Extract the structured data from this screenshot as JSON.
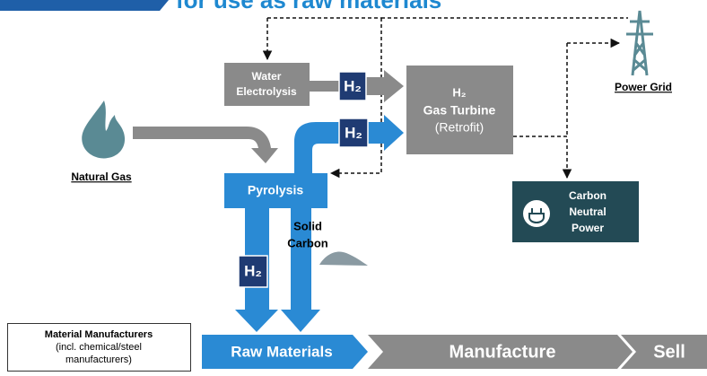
{
  "header": {
    "title": "for use as raw materials"
  },
  "nodes": {
    "water_electrolysis": [
      "Water",
      "Electrolysis"
    ],
    "h2_badge": "H₂",
    "turbine": [
      "H₂",
      "Gas Turbine",
      "(Retrofit)"
    ],
    "power_grid": "Power Grid",
    "natural_gas": "Natural Gas",
    "pyrolysis": "Pyrolysis",
    "solid_carbon": [
      "Solid",
      "Carbon"
    ],
    "carbon_neutral_power": [
      "Carbon",
      "Neutral",
      "Power"
    ],
    "material_manufacturers": [
      "Material Manufacturers",
      "(incl. chemical/steel",
      "manufacturers)"
    ]
  },
  "flow": [
    "Raw Materials",
    "Manufacture",
    "Sell"
  ]
}
